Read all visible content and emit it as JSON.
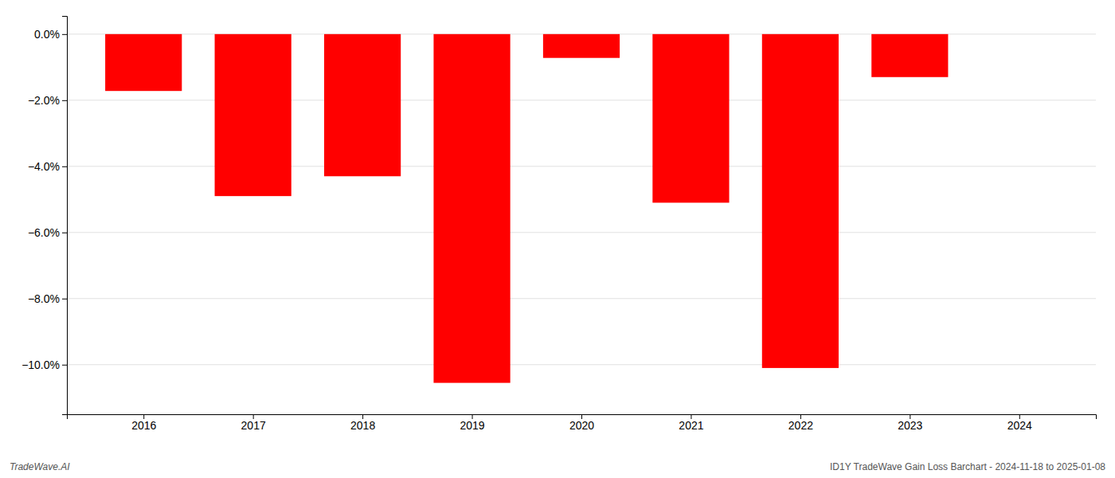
{
  "chart_data": {
    "type": "bar",
    "x": [
      2016,
      2017,
      2018,
      2019,
      2020,
      2021,
      2022,
      2023
    ],
    "values": [
      -1.72,
      -4.9,
      -4.3,
      -10.55,
      -0.72,
      -5.1,
      -10.1,
      -1.3
    ],
    "color": "#ff0000",
    "xlim": [
      2015.3,
      2024.7
    ],
    "xticks": [
      2016,
      2017,
      2018,
      2019,
      2020,
      2021,
      2022,
      2023,
      2024
    ],
    "ylim": [
      -11.5,
      0.55
    ],
    "yticks": [
      {
        "value": 0.0,
        "label": "0.0%"
      },
      {
        "value": -2.0,
        "label": "−2.0%"
      },
      {
        "value": -4.0,
        "label": "−4.0%"
      },
      {
        "value": -6.0,
        "label": "−6.0%"
      },
      {
        "value": -8.0,
        "label": "−8.0%"
      },
      {
        "value": -10.0,
        "label": "−10.0%"
      }
    ],
    "grid": true,
    "annotations": [
      "TradeWave.AI",
      "ID1Y TradeWave Gain Loss Barchart - 2024-11-18 to 2025-01-08"
    ]
  }
}
